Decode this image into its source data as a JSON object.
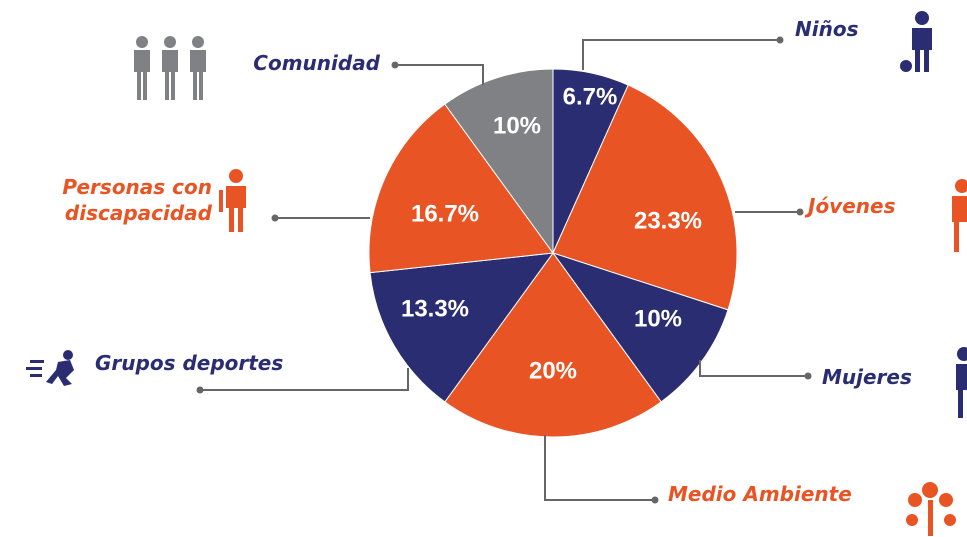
{
  "chart_data": {
    "type": "pie",
    "categories": [
      "Niños",
      "Jóvenes",
      "Mujeres",
      "Medio Ambiente",
      "Grupos deportes",
      "Personas con discapacidad",
      "Comunidad"
    ],
    "values": [
      6.7,
      23.3,
      10,
      20,
      13.3,
      16.7,
      10
    ],
    "value_labels": [
      "6.7%",
      "23.3%",
      "10%",
      "20%",
      "13.3%",
      "16.7%",
      "10%"
    ],
    "colors": [
      "#2b2d72",
      "#e95424",
      "#2b2d72",
      "#e95424",
      "#2b2d72",
      "#e95424",
      "#808184"
    ]
  }
}
